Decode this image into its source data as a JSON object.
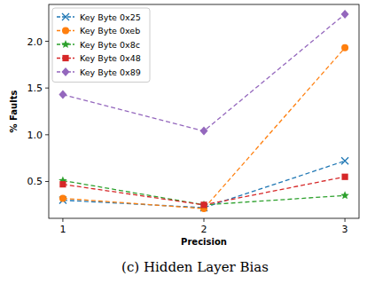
{
  "chart_data": {
    "type": "line",
    "title": "(c) Hidden Layer Bias",
    "x_label": "Precision",
    "y_label": "% Faults",
    "x": [
      1,
      2,
      3
    ],
    "xlim": [
      0.9,
      3.1
    ],
    "xticks": [
      1,
      2,
      3
    ],
    "ylim": [
      0.106,
      2.394
    ],
    "yticks": [
      0.5,
      {
        "value": 1,
        "label": "1.0"
      },
      1.5,
      {
        "value": 2,
        "label": "2.0"
      }
    ],
    "legend": "upper left",
    "grid": false,
    "series": [
      {
        "name": "Key Byte 0x25",
        "color": "#1f77b4",
        "marker": "x",
        "line_style": "dashed",
        "values": [
          0.3,
          0.22,
          0.72
        ]
      },
      {
        "name": "Key Byte 0xeb",
        "color": "#ff7f0e",
        "marker": "circle",
        "line_style": "dashed",
        "values": [
          0.32,
          0.21,
          1.93
        ]
      },
      {
        "name": "Key Byte 0x8c",
        "color": "#2ca02c",
        "marker": "star",
        "line_style": "dashed",
        "values": [
          0.51,
          0.25,
          0.35
        ]
      },
      {
        "name": "Key Byte 0x48",
        "color": "#d62728",
        "marker": "square",
        "line_style": "dashed",
        "values": [
          0.47,
          0.25,
          0.55
        ]
      },
      {
        "name": "Key Byte 0x89",
        "color": "#9467bd",
        "marker": "diamond",
        "line_style": "dashed",
        "values": [
          1.43,
          1.04,
          2.29
        ]
      }
    ]
  }
}
